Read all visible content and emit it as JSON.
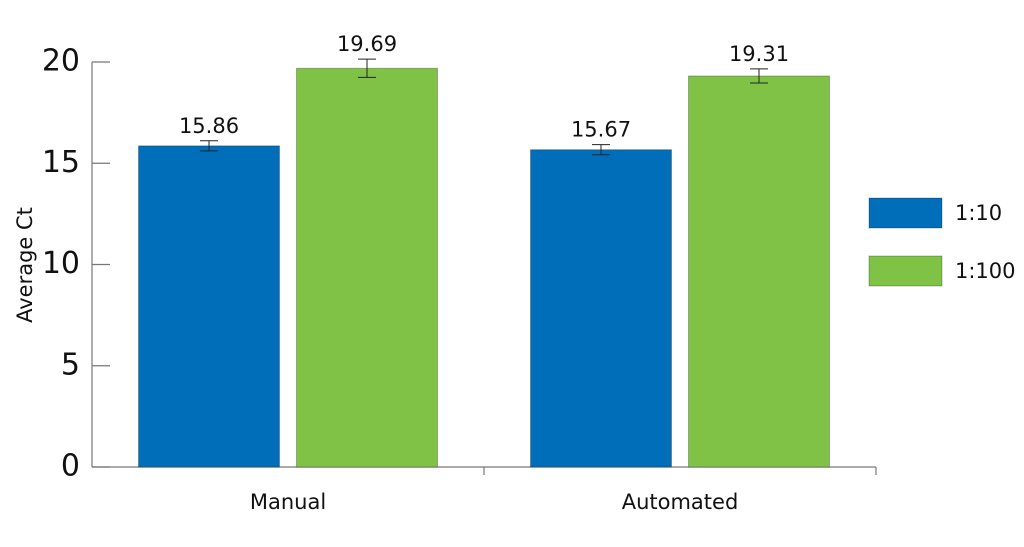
{
  "chart_data": {
    "type": "bar",
    "y_label": "Average Ct",
    "categories": [
      "Manual",
      "Automated"
    ],
    "series": [
      {
        "name": "1:10",
        "color": "#006eb9",
        "values": [
          15.86,
          15.67
        ],
        "errors": [
          0.25,
          0.25
        ]
      },
      {
        "name": "1:100",
        "color": "#7fc246",
        "values": [
          19.69,
          19.31
        ],
        "errors": [
          0.45,
          0.35
        ]
      }
    ],
    "ylim": [
      0,
      20
    ],
    "yticks": [
      0,
      5,
      10,
      15,
      20
    ],
    "legend": "right"
  }
}
